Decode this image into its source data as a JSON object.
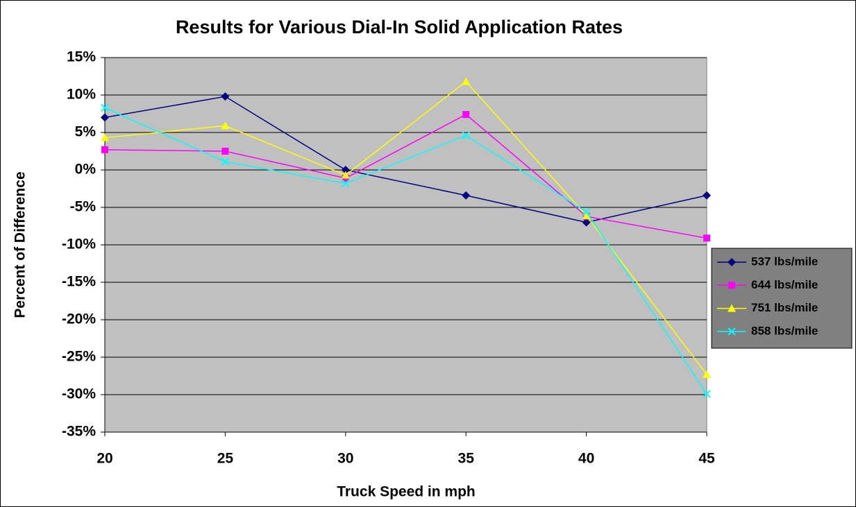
{
  "chart_data": {
    "type": "line",
    "title": "Results for Various Dial-In Solid Application Rates",
    "xlabel": "Truck Speed in mph",
    "ylabel": "Percent of Difference",
    "x": [
      20,
      25,
      30,
      35,
      40,
      45
    ],
    "xlim": [
      20,
      45
    ],
    "xticks": [
      20,
      25,
      30,
      35,
      40,
      45
    ],
    "ylim": [
      -35,
      15
    ],
    "yticks": [
      {
        "value": -35,
        "label": "-35%"
      },
      {
        "value": -30,
        "label": "-30%"
      },
      {
        "value": -25,
        "label": "-25%"
      },
      {
        "value": -20,
        "label": "-20%"
      },
      {
        "value": -15,
        "label": "-15%"
      },
      {
        "value": -10,
        "label": "-10%"
      },
      {
        "value": -5,
        "label": "-5%"
      },
      {
        "value": 0,
        "label": "0%"
      },
      {
        "value": 5,
        "label": "5%"
      },
      {
        "value": 10,
        "label": "10%"
      },
      {
        "value": 15,
        "label": "15%"
      }
    ],
    "grid": true,
    "legend": "right",
    "series": [
      {
        "name": "537 lbs/mile",
        "color": "#000080",
        "marker": "diamond",
        "values": [
          7,
          9.8,
          0,
          -3.4,
          -7,
          -3.4
        ]
      },
      {
        "name": "644 lbs/mile",
        "color": "#ff00ff",
        "marker": "square",
        "values": [
          2.7,
          2.5,
          -1.1,
          7.4,
          -6.2,
          -9.1
        ]
      },
      {
        "name": "751 lbs/mile",
        "color": "#ffff00",
        "marker": "triangle",
        "values": [
          4.3,
          5.9,
          -0.7,
          11.8,
          -6.1,
          -27.3
        ]
      },
      {
        "name": "858 lbs/mile",
        "color": "#00ffff",
        "marker": "x",
        "values": [
          8.3,
          1.1,
          -1.8,
          4.6,
          -5.6,
          -29.9
        ]
      }
    ]
  }
}
